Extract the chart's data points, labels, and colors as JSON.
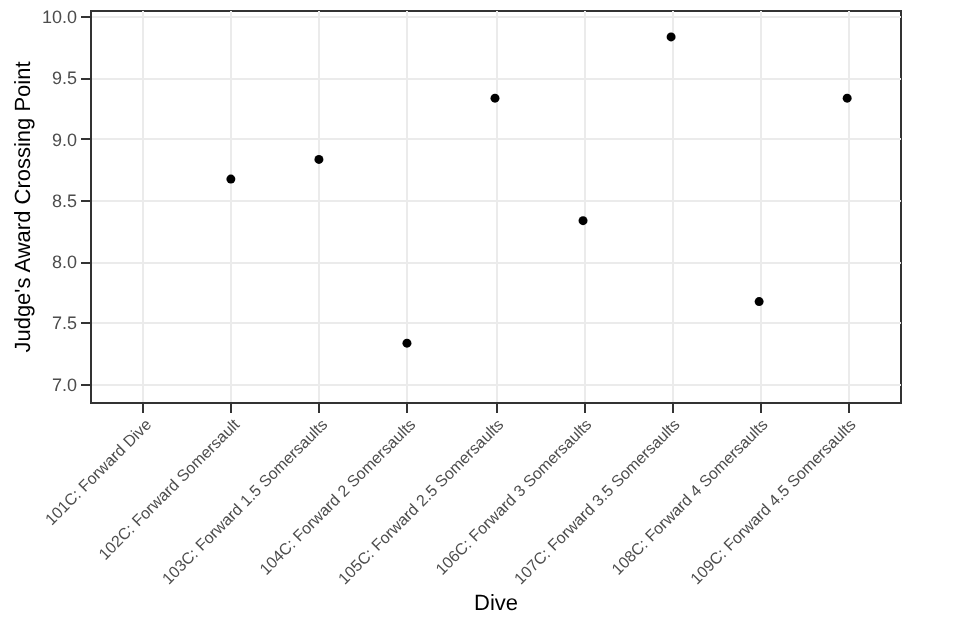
{
  "chart_data": {
    "type": "scatter",
    "xlabel": "Dive",
    "ylabel": "Judge's Award Crossing Point",
    "categories": [
      "101C: Forward Dive",
      "102C: Forward Somersault",
      "103C: Forward 1.5 Somersaults",
      "104C: Forward 2 Somersaults",
      "105C: Forward 2.5 Somersaults",
      "106C: Forward 3 Somersaults",
      "107C: Forward 3.5 Somersaults",
      "108C: Forward 4 Somersaults",
      "109C: Forward 4.5 Somersaults"
    ],
    "values": [
      null,
      8.67,
      8.83,
      7.33,
      9.33,
      8.33,
      9.83,
      7.67,
      9.33
    ],
    "color": "#000000",
    "marker": "circle",
    "grid": true,
    "ylim": [
      6.85,
      10.05
    ],
    "yticks": [
      {
        "value": 7,
        "label": "7.0"
      },
      7.5,
      {
        "value": 8,
        "label": "8.0"
      },
      8.5,
      {
        "value": 9,
        "label": "9.0"
      },
      9.5,
      {
        "value": 10,
        "label": "10.0"
      }
    ]
  }
}
